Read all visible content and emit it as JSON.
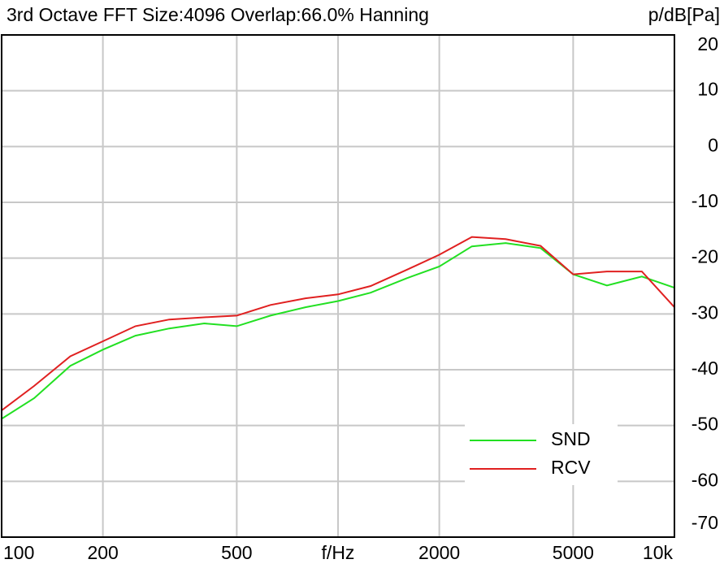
{
  "chart_data": {
    "type": "line",
    "title": "3rd Octave  FFT Size:4096  Overlap:66.0%  Hanning",
    "y_label": "p/dB[Pa]",
    "x": [
      100,
      125,
      160,
      200,
      250,
      315,
      400,
      500,
      630,
      800,
      1000,
      1250,
      1600,
      2000,
      2500,
      3150,
      4000,
      5000,
      6300,
      8000,
      10000
    ],
    "series": [
      {
        "name": "SND",
        "color": "#22e022",
        "values": [
          -48.8,
          -45.1,
          -39.3,
          -36.4,
          -33.9,
          -32.6,
          -31.7,
          -32.2,
          -30.3,
          -28.8,
          -27.7,
          -26.2,
          -23.6,
          -21.5,
          -17.9,
          -17.3,
          -18.2,
          -22.9,
          -24.9,
          -23.3,
          -25.3
        ]
      },
      {
        "name": "RCV",
        "color": "#e02020",
        "values": [
          -47.3,
          -42.9,
          -37.6,
          -34.9,
          -32.2,
          -31.0,
          -30.6,
          -30.3,
          -28.4,
          -27.2,
          -26.5,
          -25.0,
          -22.1,
          -19.4,
          -16.2,
          -16.6,
          -17.8,
          -22.9,
          -22.4,
          -22.4,
          -28.8
        ]
      }
    ],
    "xlim": [
      100,
      10000
    ],
    "x_log": true,
    "xticks": [
      100,
      200,
      500,
      {
        "value": 1000,
        "label": "f/Hz"
      },
      2000,
      5000,
      {
        "value": 10000,
        "label": "10k"
      }
    ],
    "ylim": [
      -70,
      20
    ],
    "yticks": [
      20,
      10,
      0,
      -10,
      -20,
      -30,
      -40,
      -50,
      -60,
      -70
    ],
    "grid": true,
    "legend_position": "lower-right"
  }
}
